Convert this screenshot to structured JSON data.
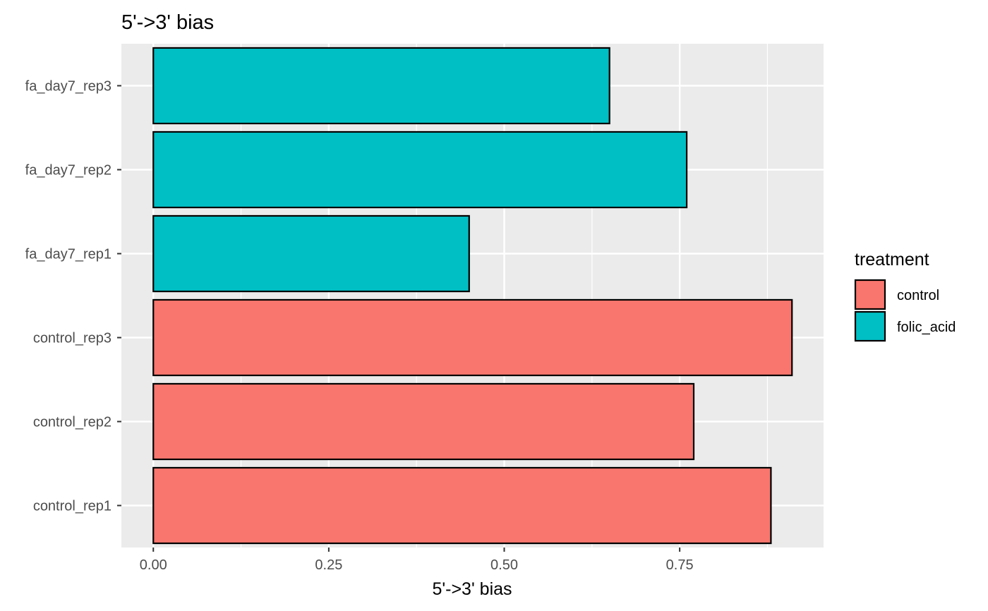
{
  "chart_data": {
    "type": "bar",
    "orientation": "horizontal",
    "title": "5'->3' bias",
    "xlabel": "5'->3' bias",
    "ylabel": "",
    "xlim": [
      -0.0455,
      0.955
    ],
    "xticks": [
      0.0,
      0.25,
      0.5,
      0.75
    ],
    "xtick_labels": [
      "0.00",
      "0.25",
      "0.50",
      "0.75"
    ],
    "grid": true,
    "legend_position": "right",
    "legend_title": "treatment",
    "categories": [
      "control_rep1",
      "control_rep2",
      "control_rep3",
      "fa_day7_rep1",
      "fa_day7_rep2",
      "fa_day7_rep3"
    ],
    "values": [
      0.88,
      0.77,
      0.91,
      0.45,
      0.76,
      0.65
    ],
    "groups": [
      "control",
      "control",
      "control",
      "folic_acid",
      "folic_acid",
      "folic_acid"
    ],
    "legend": [
      {
        "name": "control",
        "color": "#F8766D"
      },
      {
        "name": "folic_acid",
        "color": "#00BFC4"
      }
    ]
  }
}
